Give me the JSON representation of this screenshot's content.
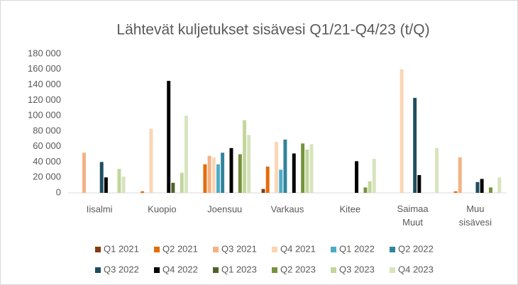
{
  "chart_data": {
    "type": "bar",
    "title": "Lähtevät kuljetukset sisävesi Q1/21-Q4/23 (t/Q)",
    "categories": [
      "Iisalmi",
      "Kuopio",
      "Joensuu",
      "Varkaus",
      "Kitee",
      "Saimaa Muut",
      "Muu sisävesi"
    ],
    "series": [
      {
        "name": "Q1 2021",
        "color": "#843c0c",
        "values": [
          0,
          0,
          0,
          5000,
          0,
          0,
          0
        ]
      },
      {
        "name": "Q2 2021",
        "color": "#e46c0a",
        "values": [
          0,
          2000,
          37000,
          34000,
          0,
          0,
          2000
        ]
      },
      {
        "name": "Q3 2021",
        "color": "#f4b183",
        "values": [
          52000,
          0,
          48000,
          0,
          0,
          0,
          46000
        ]
      },
      {
        "name": "Q4 2021",
        "color": "#fbd5b5",
        "values": [
          0,
          83000,
          46000,
          66000,
          0,
          160000,
          0
        ]
      },
      {
        "name": "Q1 2022",
        "color": "#4bacc6",
        "values": [
          0,
          0,
          37000,
          30000,
          0,
          0,
          0
        ]
      },
      {
        "name": "Q2 2022",
        "color": "#31849b",
        "values": [
          0,
          0,
          52000,
          69000,
          0,
          0,
          0
        ]
      },
      {
        "name": "Q3 2022",
        "color": "#1f4e5f",
        "values": [
          40000,
          0,
          0,
          0,
          0,
          123000,
          14000
        ]
      },
      {
        "name": "Q4 2022",
        "color": "#000000",
        "values": [
          20000,
          145000,
          58000,
          51000,
          41000,
          23000,
          18000
        ]
      },
      {
        "name": "Q1 2023",
        "color": "#4f6228",
        "values": [
          0,
          13000,
          0,
          0,
          0,
          0,
          0
        ]
      },
      {
        "name": "Q2 2023",
        "color": "#77933c",
        "values": [
          0,
          0,
          50000,
          64000,
          7000,
          0,
          7000
        ]
      },
      {
        "name": "Q3 2023",
        "color": "#c3d69b",
        "values": [
          31000,
          26000,
          94000,
          56000,
          15000,
          0,
          0
        ]
      },
      {
        "name": "Q4 2023",
        "color": "#d7e4bd",
        "values": [
          21000,
          100000,
          75000,
          63000,
          44000,
          58000,
          20000
        ]
      }
    ],
    "ylim": [
      0,
      180000
    ],
    "yticks": [
      0,
      {
        "value": 20000,
        "label": "20 000"
      },
      {
        "value": 40000,
        "label": "40 000"
      },
      {
        "value": 60000,
        "label": "60 000"
      },
      {
        "value": 80000,
        "label": "80 000"
      },
      {
        "value": 100000,
        "label": "100 000"
      },
      {
        "value": 120000,
        "label": "120 000"
      },
      {
        "value": 140000,
        "label": "140 000"
      },
      {
        "value": 160000,
        "label": "160 000"
      },
      {
        "value": 180000,
        "label": "180 000"
      }
    ],
    "grid": false
  }
}
